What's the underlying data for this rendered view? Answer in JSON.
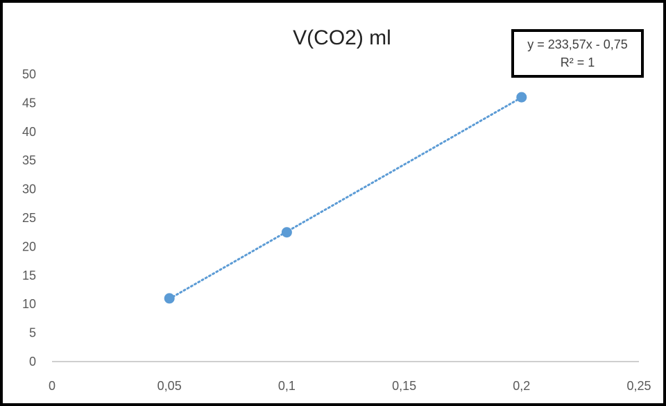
{
  "chart_data": {
    "type": "scatter",
    "title": "V(CO2) ml",
    "xlabel": "",
    "ylabel": "",
    "x": [
      0.05,
      0.1,
      0.2
    ],
    "y": [
      11,
      22.5,
      46
    ],
    "xlim": [
      0,
      0.25
    ],
    "ylim": [
      0,
      50
    ],
    "x_ticks": [
      "0",
      "0,05",
      "0,1",
      "0,15",
      "0,2",
      "0,25"
    ],
    "x_tick_values": [
      0,
      0.05,
      0.1,
      0.15,
      0.2,
      0.25
    ],
    "y_ticks": [
      "0",
      "5",
      "10",
      "15",
      "20",
      "25",
      "30",
      "35",
      "40",
      "45",
      "50"
    ],
    "y_tick_values": [
      0,
      5,
      10,
      15,
      20,
      25,
      30,
      35,
      40,
      45,
      50
    ],
    "trendline": {
      "type": "linear",
      "style": "dotted",
      "slope": 233.57,
      "intercept": -0.75,
      "equation_label": "y = 233,57x - 0,75",
      "r2_label": "R² = 1"
    },
    "grid": false,
    "legend": "none",
    "colors": {
      "marker": "#5b9bd5",
      "trendline": "#5b9bd5",
      "axis": "#bfbfbf"
    }
  }
}
